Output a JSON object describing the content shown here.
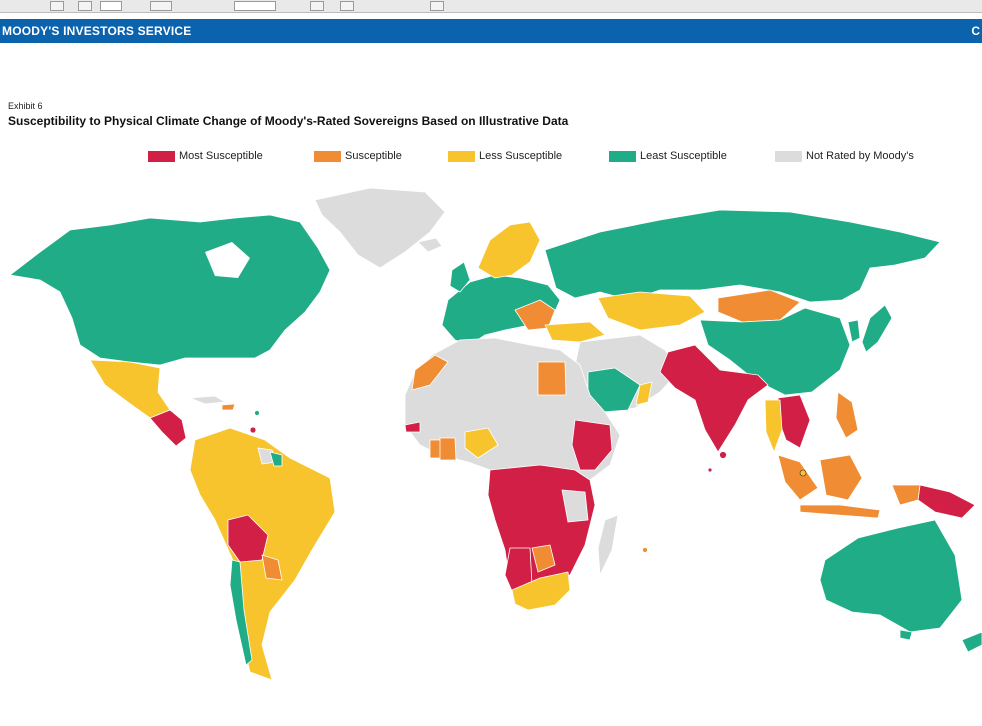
{
  "header": {
    "banner_title": "MOODY'S INVESTORS SERVICE",
    "banner_right": "C"
  },
  "figure": {
    "exhibit": "Exhibit 6",
    "title": "Susceptibility to Physical Climate Change of Moody's-Rated Sovereigns Based on Illustrative Data"
  },
  "legend": [
    {
      "label": "Most Susceptible",
      "color": "#d21f45"
    },
    {
      "label": "Susceptible",
      "color": "#f08c33"
    },
    {
      "label": "Less Susceptible",
      "color": "#f7c42e"
    },
    {
      "label": "Least Susceptible",
      "color": "#1fac86"
    },
    {
      "label": "Not Rated by Moody's",
      "color": "#dcdcdc"
    }
  ],
  "colors": {
    "banner": "#0b62ad",
    "most": "#d21f45",
    "susceptible": "#f08c33",
    "less": "#f7c42e",
    "least": "#1fac86",
    "not_rated": "#dcdcdc"
  }
}
